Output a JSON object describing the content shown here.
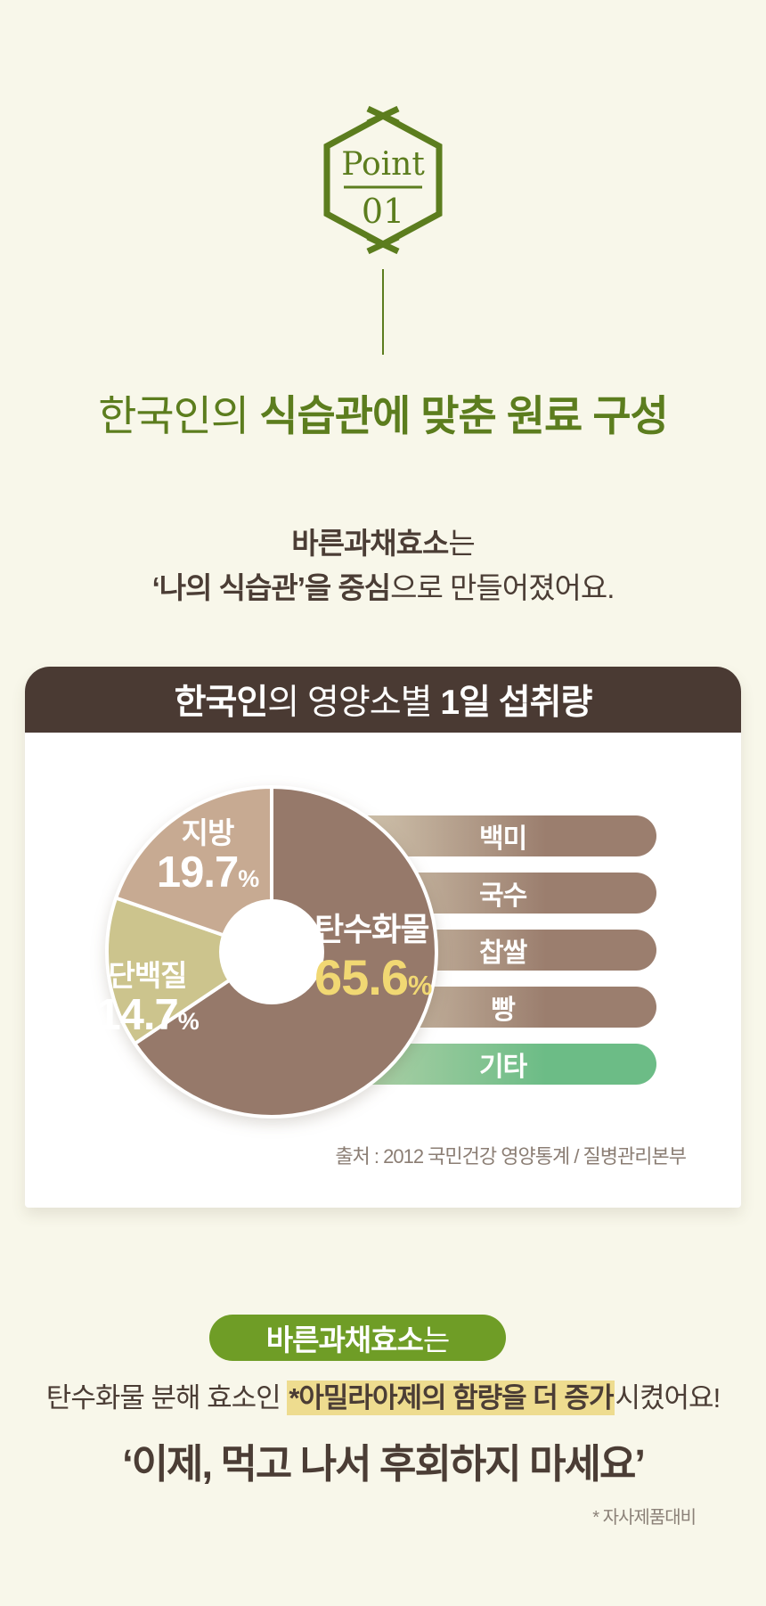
{
  "badge": {
    "label": "Point",
    "number": "01"
  },
  "title": {
    "regular": "한국인의 ",
    "bold": "식습관에 맞춘 원료 구성"
  },
  "subtitle": {
    "line1_bold": "바른과채효소",
    "line1_regular": "는",
    "line2_bold": "‘나의 식습관’을 중심",
    "line2_regular": "으로 만들어졌어요."
  },
  "card": {
    "header_bold1": "한국인",
    "header_regular": "의 영양소별 ",
    "header_bold2": "1일 섭취량",
    "source": "출처 : 2012 국민건강 영양통계 / 질병관리본부"
  },
  "chart_data": {
    "type": "pie",
    "title": "한국인의 영양소별 1일 섭취량",
    "donut": true,
    "start_angle": "12 o'clock, clockwise",
    "unit": "%",
    "slices": [
      {
        "key": "carb",
        "label": "탄수화물",
        "value": 65.6,
        "color": "#96796a"
      },
      {
        "key": "protein",
        "label": "단백질",
        "value": 14.7,
        "color": "#ccc48d"
      },
      {
        "key": "fat",
        "label": "지방",
        "value": 19.7,
        "color": "#c7aa92"
      }
    ],
    "value_text_colors": {
      "carb": "#f1d873",
      "protein": "#ffffff",
      "fat": "#ffffff"
    },
    "bars": {
      "description": "carbohydrate food examples, rounded horizontal bars",
      "items": [
        {
          "label": "백미",
          "color_start": "#ece3d2",
          "color_mid": "#cdbfa9",
          "color_end": "#9b7e6e"
        },
        {
          "label": "국수",
          "color_start": "#ece3d2",
          "color_mid": "#cdbfa9",
          "color_end": "#9b7e6e"
        },
        {
          "label": "찹쌀",
          "color_start": "#ece3d2",
          "color_mid": "#cdbfa9",
          "color_end": "#9b7e6e"
        },
        {
          "label": "빵",
          "color_start": "#ece3d2",
          "color_mid": "#cdbfa9",
          "color_end": "#9b7e6e"
        },
        {
          "label": "기타",
          "color_start": "#dfe6cd",
          "color_mid": "#a9cfa5",
          "color_end": "#6cbc86"
        }
      ]
    },
    "source": "출처 : 2012 국민건강 영양통계 / 질병관리본부"
  },
  "footer": {
    "pill_bold": "바른과채효소",
    "pill_regular": "는",
    "claim_pre": "탄수화물 분해 효소인 ",
    "claim_highlight": "*아밀라아제의 함량을 더 증가",
    "claim_post": "시켰어요!",
    "quote": "‘이제, 먹고 나서 후회하지 마세요’",
    "note": "* 자사제품대비"
  },
  "colors": {
    "background": "#f8f7ea",
    "accent_green": "#5c7d1e",
    "pill_green": "#6f9d26",
    "dark_brown": "#4b3d35",
    "header_brown": "#4a3a33",
    "highlight_yellow": "#eedc8f",
    "percent_yellow": "#f1d873",
    "etc_bar_green": "#6cbc86"
  }
}
